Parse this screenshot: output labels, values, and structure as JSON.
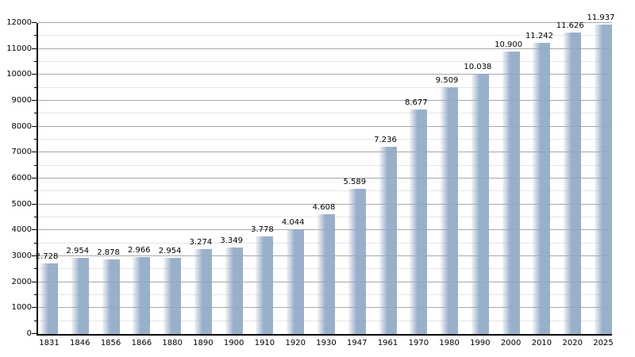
{
  "chart_data": {
    "type": "bar",
    "title": "",
    "xlabel": "",
    "ylabel": "",
    "categories": [
      "1831",
      "1846",
      "1856",
      "1866",
      "1880",
      "1890",
      "1900",
      "1910",
      "1920",
      "1930",
      "1947",
      "1961",
      "1970",
      "1980",
      "1990",
      "2000",
      "2010",
      "2020",
      "2025"
    ],
    "values": [
      2728,
      2954,
      2878,
      2966,
      2954,
      3274,
      3349,
      3778,
      4044,
      4608,
      5589,
      7236,
      8677,
      9509,
      10038,
      10900,
      11242,
      11626,
      11937
    ],
    "value_labels": [
      "2.728",
      "2.954",
      "2.878",
      "2.966",
      "2.954",
      "3.274",
      "3.349",
      "3.778",
      "4.044",
      "4.608",
      "5.589",
      "7.236",
      "8.677",
      "9.509",
      "10.038",
      "10.900",
      "11.242",
      "11.626",
      "11.937"
    ],
    "ylim": [
      0,
      12000
    ],
    "ytick_step": 1000,
    "yminor_step": 500,
    "ytick_labels": [
      "0",
      "1000",
      "2000",
      "3000",
      "4000",
      "5000",
      "6000",
      "7000",
      "8000",
      "9000",
      "10000",
      "11000",
      "12000"
    ],
    "grid": true,
    "legend": "none",
    "colors": {
      "bar": "#90A9C6",
      "bar_fade_edge": "#ffffff",
      "grid_major": "#a8a8a8",
      "grid_minor": "#e6e6e6",
      "axis": "#000000",
      "text": "#000000",
      "background": "#ffffff"
    }
  }
}
